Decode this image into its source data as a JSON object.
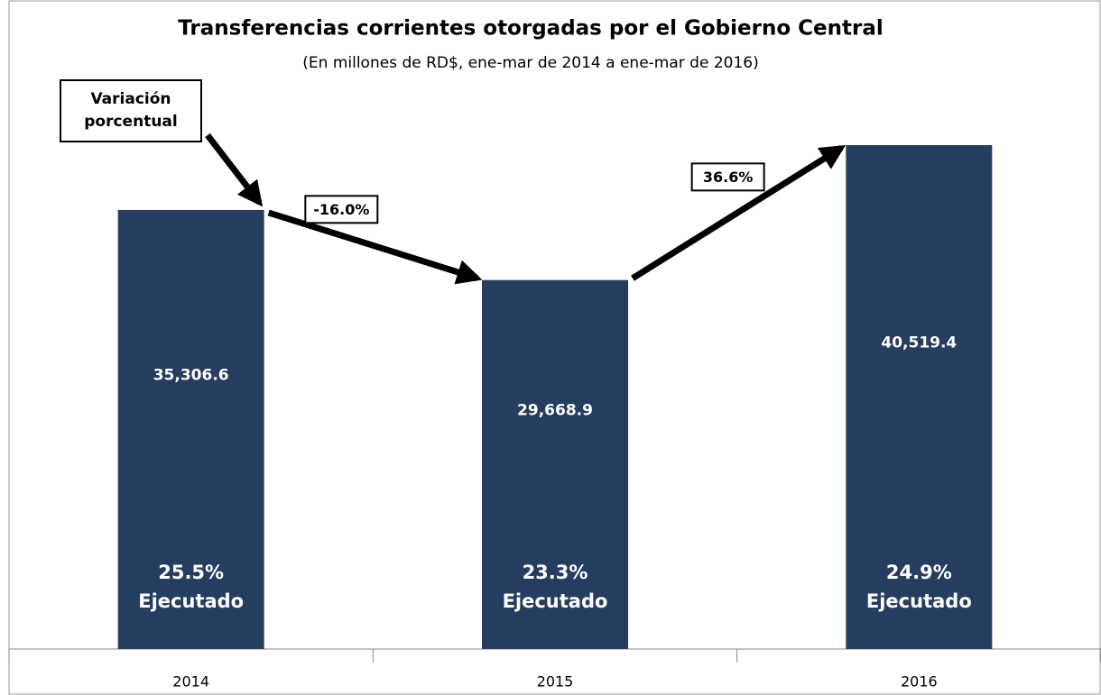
{
  "chart_data": {
    "type": "bar",
    "title": "Transferencias corrientes otorgadas por el Gobierno Central",
    "subtitle": "(En millones de RD$, ene-mar de 2014 a ene-mar de 2016)",
    "categories": [
      "2014",
      "2015",
      "2016"
    ],
    "values": [
      35306.6,
      29668.9,
      40519.4
    ],
    "value_labels": [
      "35,306.6",
      "29,668.9",
      "40,519.4"
    ],
    "color": "#253d5e",
    "executed_labels": [
      "25.5%",
      "23.3%",
      "24.9%"
    ],
    "executed_text": "Ejecutado",
    "annotation": "Variación porcentual",
    "changes": [
      "-16.0%",
      "36.6%"
    ]
  }
}
